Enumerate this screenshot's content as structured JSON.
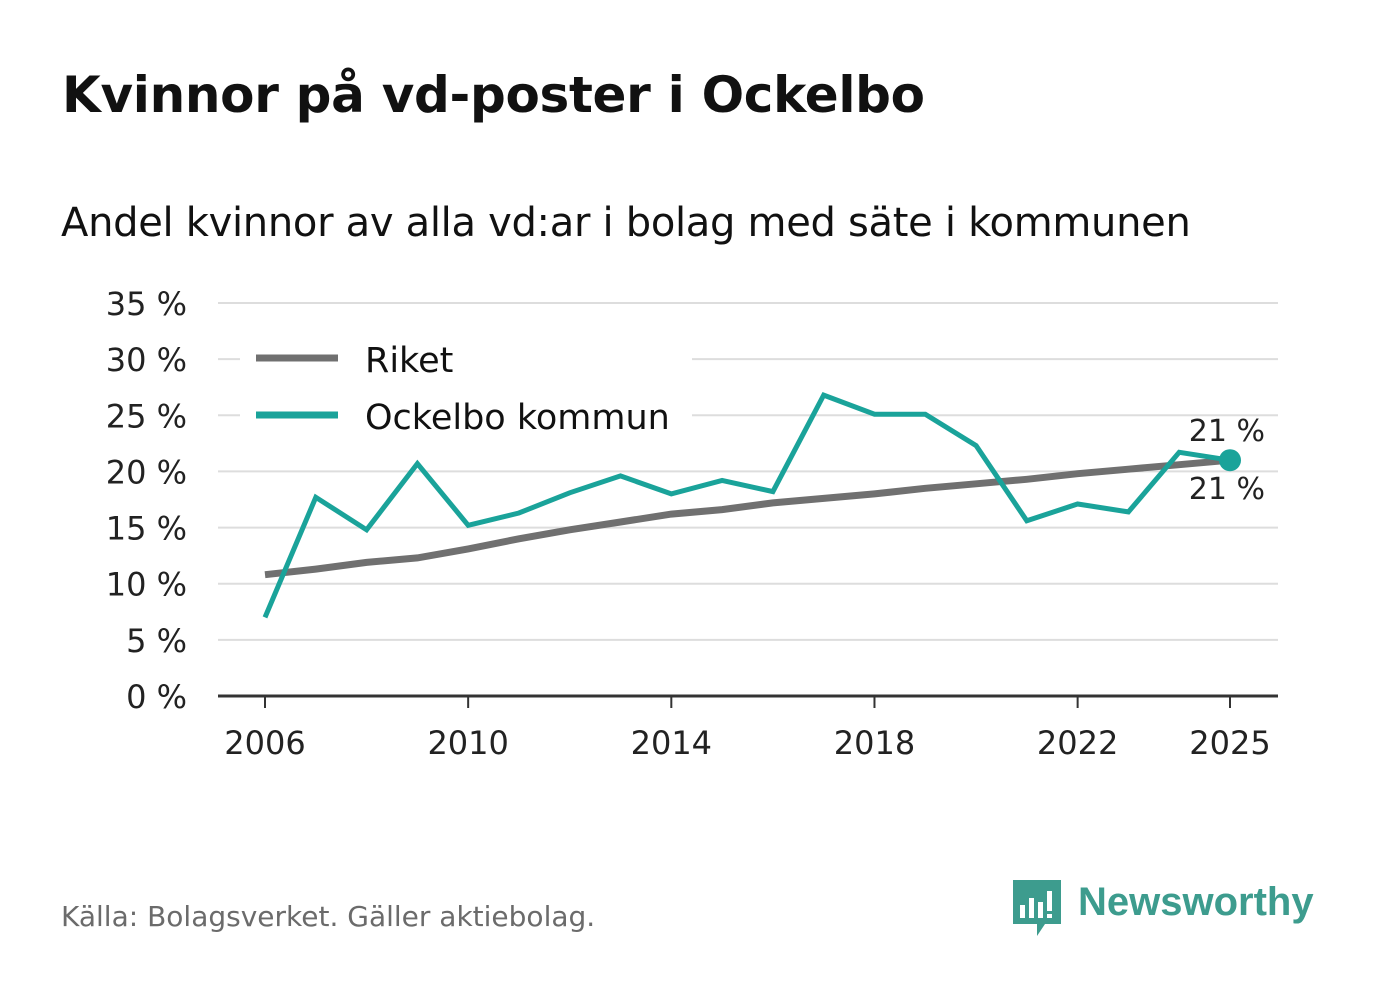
{
  "title": "Kvinnor på vd-poster i Ockelbo",
  "subtitle": "Andel kvinnor av alla vd:ar i bolag med säte i kommunen",
  "source": "Källa: Bolagsverket. Gäller aktiebolag.",
  "brand": {
    "name": "Newsworthy",
    "icon": "newsworthy-logo-icon"
  },
  "colors": {
    "riket": "#707070",
    "kommun": "#1aa39a",
    "grid": "#dddddd",
    "axis": "#333333"
  },
  "chart_data": {
    "type": "line",
    "title": "Kvinnor på vd-poster i Ockelbo",
    "subtitle": "Andel kvinnor av alla vd:ar i bolag med säte i kommunen",
    "xlabel": "",
    "ylabel": "",
    "x": [
      2006,
      2007,
      2008,
      2009,
      2010,
      2011,
      2012,
      2013,
      2014,
      2015,
      2016,
      2017,
      2018,
      2019,
      2020,
      2021,
      2022,
      2023,
      2024,
      2025
    ],
    "x_ticks": [
      2006,
      2010,
      2014,
      2018,
      2022,
      2025
    ],
    "x_tick_labels": [
      "2006",
      "2010",
      "2014",
      "2018",
      "2022",
      "2025"
    ],
    "ylim": [
      0,
      35
    ],
    "y_ticks": [
      0,
      5,
      10,
      15,
      20,
      25,
      30,
      35
    ],
    "y_tick_labels": [
      "0 %",
      "5 %",
      "10 %",
      "15 %",
      "20 %",
      "25 %",
      "30 %",
      "35 %"
    ],
    "grid": true,
    "legend_position": "top-left",
    "series": [
      {
        "name": "Riket",
        "color": "#707070",
        "values": [
          10.8,
          11.3,
          11.9,
          12.3,
          13.1,
          14.0,
          14.8,
          15.5,
          16.2,
          16.6,
          17.2,
          17.6,
          18.0,
          18.5,
          18.9,
          19.3,
          19.8,
          20.2,
          20.6,
          21.0
        ],
        "end_label": "21 %"
      },
      {
        "name": "Ockelbo kommun",
        "color": "#1aa39a",
        "values": [
          7.0,
          17.7,
          14.8,
          20.7,
          15.2,
          16.3,
          18.1,
          19.6,
          18.0,
          19.2,
          18.2,
          26.8,
          25.1,
          25.1,
          22.3,
          15.6,
          17.1,
          16.4,
          21.7,
          21.0
        ],
        "end_label": "21 %"
      }
    ]
  }
}
